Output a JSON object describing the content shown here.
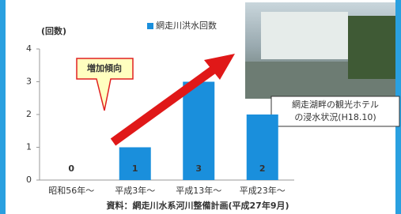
{
  "chart_data": {
    "type": "bar",
    "y_axis_label": "(回数)",
    "categories": [
      "昭和56年～",
      "平成3年～",
      "平成13年～",
      "平成23年～"
    ],
    "series": [
      {
        "name": "網走川洪水回数",
        "color": "#1a8fdc",
        "values": [
          0,
          1,
          3,
          2
        ]
      }
    ],
    "ylim": [
      0,
      4
    ],
    "yticks": [
      0,
      1,
      2,
      3,
      4
    ],
    "annotation": "増加傾向",
    "source": "資料：網走川水系河川整備計画(平成27年9月)"
  },
  "photo": {
    "caption": [
      "網走湖畔の観光ホテル",
      "の浸水状況(H18.10)"
    ]
  }
}
